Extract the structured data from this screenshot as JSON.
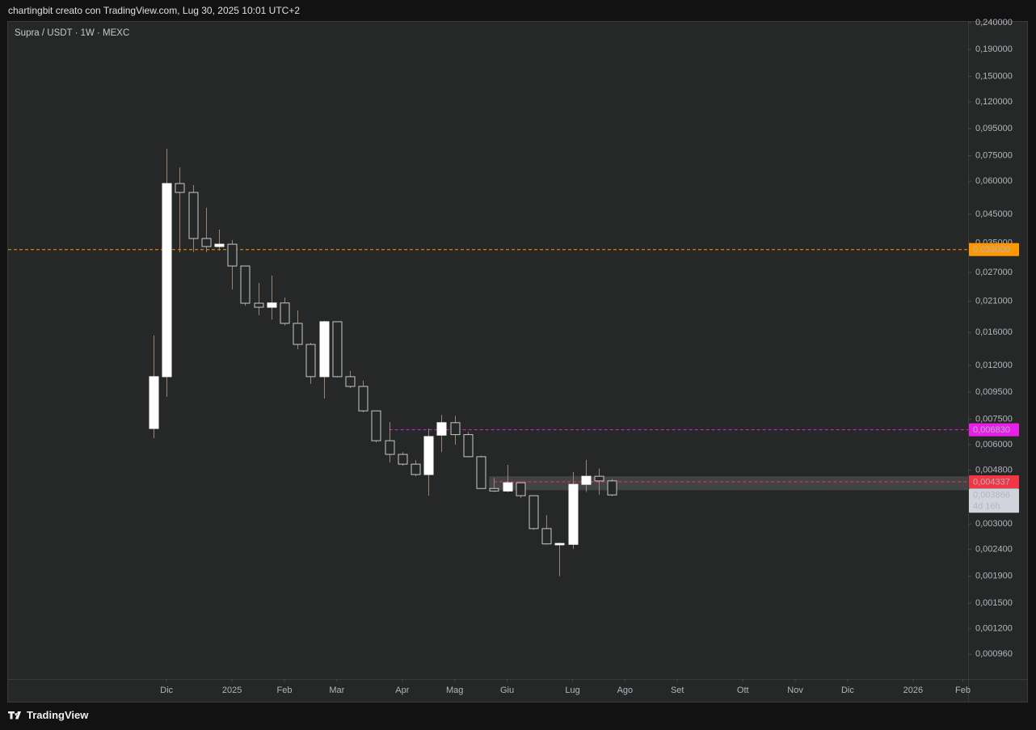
{
  "header": "chartingbit creato con TradingView.com, Lug 30, 2025 10:01 UTC+2",
  "footer": "TradingView",
  "chart_data": {
    "type": "candlestick",
    "title": "Supra / USDT · 1W · MEXC",
    "log_scale": true,
    "up_color": "#ffffff",
    "down_color": "#262727",
    "down_border": "#c8c8c8",
    "wick_color": "#9a8574",
    "open": [
      0.00691,
      0.01087,
      0.0588,
      0.0544,
      0.03636,
      0.0339,
      0.0346,
      0.0286,
      0.02066,
      0.01994,
      0.0207,
      0.01732,
      0.01441,
      0.01087,
      0.01757,
      0.01087,
      0.00998,
      0.00806,
      0.00621,
      0.00551,
      0.00506,
      0.00462,
      0.00652,
      0.00727,
      0.00655,
      0.0054,
      0.00409,
      0.004,
      0.0043,
      0.00384,
      0.00288,
      0.0025,
      0.00251,
      0.00424,
      0.00455,
      0.00437
    ],
    "high": [
      0.01558,
      0.0797,
      0.0677,
      0.058,
      0.0476,
      0.0393,
      0.0359,
      0.0286,
      0.02465,
      0.0263,
      0.0217,
      0.0194,
      0.0146,
      0.0177,
      0.01757,
      0.01142,
      0.0105,
      0.00806,
      0.00731,
      0.00562,
      0.00524,
      0.00691,
      0.00779,
      0.00772,
      0.0067,
      0.00545,
      0.00449,
      0.00503,
      0.00435,
      0.00384,
      0.00324,
      0.00255,
      0.00472,
      0.00525,
      0.00487,
      0.00445
    ],
    "low": [
      0.00635,
      0.00911,
      0.03226,
      0.0323,
      0.0323,
      0.0327,
      0.0233,
      0.0202,
      0.0186,
      0.0179,
      0.017,
      0.01382,
      0.0102,
      0.00898,
      0.0108,
      0.00984,
      0.00796,
      0.00612,
      0.00513,
      0.00499,
      0.00455,
      0.00384,
      0.00562,
      0.006,
      0.00537,
      0.00408,
      0.00397,
      0.00396,
      0.00377,
      0.00285,
      0.0025,
      0.0019,
      0.00241,
      0.00397,
      0.00387,
      0.00382
    ],
    "close": [
      0.01087,
      0.0588,
      0.0544,
      0.03636,
      0.0339,
      0.0346,
      0.0286,
      0.02066,
      0.01994,
      0.0207,
      0.01732,
      0.01441,
      0.01087,
      0.01757,
      0.01087,
      0.00998,
      0.00806,
      0.00621,
      0.00551,
      0.00506,
      0.00462,
      0.00644,
      0.00727,
      0.00655,
      0.0054,
      0.00409,
      0.004,
      0.0043,
      0.00384,
      0.00288,
      0.00252,
      0.00253,
      0.00424,
      0.00455,
      0.00437,
      0.003866
    ],
    "ylim": [
      0.000773,
      0.2417
    ],
    "yticks": [
      {
        "value": 0.24,
        "label": "0,240000"
      },
      {
        "value": 0.19,
        "label": "0,190000"
      },
      {
        "value": 0.15,
        "label": "0,150000"
      },
      {
        "value": 0.12,
        "label": "0,120000"
      },
      {
        "value": 0.095,
        "label": "0,095000"
      },
      {
        "value": 0.075,
        "label": "0,075000"
      },
      {
        "value": 0.06,
        "label": "0,060000"
      },
      {
        "value": 0.045,
        "label": "0,045000"
      },
      {
        "value": 0.035,
        "label": "0,035000"
      },
      {
        "value": 0.027,
        "label": "0,027000"
      },
      {
        "value": 0.021,
        "label": "0,021000"
      },
      {
        "value": 0.016,
        "label": "0,016000"
      },
      {
        "value": 0.012,
        "label": "0,012000"
      },
      {
        "value": 0.0095,
        "label": "0,009500"
      },
      {
        "value": 0.0075,
        "label": "0,007500"
      },
      {
        "value": 0.006,
        "label": "0,006000"
      },
      {
        "value": 0.0048,
        "label": "0,004800"
      },
      {
        "value": 0.003,
        "label": "0,003000"
      },
      {
        "value": 0.0024,
        "label": "0,002400"
      },
      {
        "value": 0.0019,
        "label": "0,001900"
      },
      {
        "value": 0.0015,
        "label": "0,001500"
      },
      {
        "value": 0.0012,
        "label": "0,001200"
      },
      {
        "value": 0.00096,
        "label": "0,000960"
      }
    ],
    "xlim": [
      -11.1,
      62.2
    ],
    "xticks": [
      {
        "value": 1,
        "label": "Dic"
      },
      {
        "value": 6,
        "label": "2025"
      },
      {
        "value": 10,
        "label": "Feb"
      },
      {
        "value": 14,
        "label": "Mar"
      },
      {
        "value": 19,
        "label": "Apr"
      },
      {
        "value": 23,
        "label": "Mag"
      },
      {
        "value": 27,
        "label": "Giu"
      },
      {
        "value": 32,
        "label": "Lug"
      },
      {
        "value": 36,
        "label": "Ago"
      },
      {
        "value": 40,
        "label": "Set"
      },
      {
        "value": 45,
        "label": "Ott"
      },
      {
        "value": 49,
        "label": "Nov"
      },
      {
        "value": 53,
        "label": "Dic"
      },
      {
        "value": 58,
        "label": "2026"
      },
      {
        "value": 61.8,
        "label": "Feb"
      }
    ],
    "zone": [
      0.00455,
      0.00403
    ],
    "price_lines": [
      {
        "value": 0.033,
        "label": "0,033000",
        "color": "#ff9800"
      },
      {
        "value": 0.00683,
        "label": "0,006830",
        "color": "#e91ee9"
      },
      {
        "value": 0.004337,
        "label": "0,004337",
        "color": "#f23645"
      }
    ],
    "last_price": {
      "label": "0,003866",
      "countdown": "4d 16h"
    }
  }
}
